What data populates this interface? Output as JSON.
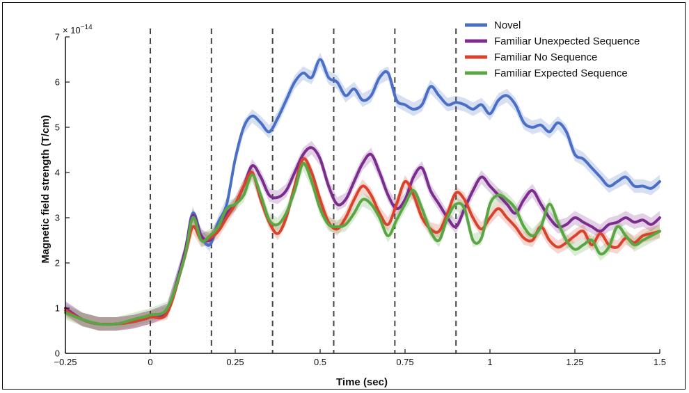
{
  "chart_data": {
    "type": "line",
    "xlabel": "Time (sec)",
    "ylabel": "Magnetic field strength (T/cm)",
    "y_multiplier_label": "× 10",
    "y_multiplier_exponent": "−14",
    "xlim": [
      -0.25,
      1.5
    ],
    "ylim": [
      0,
      7
    ],
    "x_ticks": [
      -0.25,
      0,
      0.25,
      0.5,
      0.75,
      1,
      1.25,
      1.5
    ],
    "x_tick_labels": [
      "−0.25",
      "0",
      "0.25",
      "0.5",
      "0.75",
      "1",
      "1.25",
      "1.5"
    ],
    "y_ticks": [
      0,
      1,
      2,
      3,
      4,
      5,
      6,
      7
    ],
    "y_tick_labels": [
      "0",
      "1",
      "2",
      "3",
      "4",
      "5",
      "6",
      "7"
    ],
    "vertical_markers": [
      0,
      0.18,
      0.36,
      0.54,
      0.72,
      0.9
    ],
    "grid": false,
    "legend_position": "top-right",
    "x": [
      -0.25,
      -0.2,
      -0.15,
      -0.1,
      -0.05,
      0,
      0.05,
      0.1,
      0.125,
      0.15,
      0.175,
      0.2,
      0.225,
      0.25,
      0.275,
      0.3,
      0.325,
      0.35,
      0.375,
      0.4,
      0.425,
      0.45,
      0.475,
      0.5,
      0.525,
      0.55,
      0.575,
      0.6,
      0.625,
      0.65,
      0.675,
      0.7,
      0.725,
      0.75,
      0.775,
      0.8,
      0.825,
      0.85,
      0.875,
      0.9,
      0.925,
      0.95,
      0.975,
      1,
      1.025,
      1.05,
      1.075,
      1.1,
      1.125,
      1.15,
      1.175,
      1.2,
      1.225,
      1.25,
      1.275,
      1.3,
      1.325,
      1.35,
      1.375,
      1.4,
      1.425,
      1.45,
      1.475,
      1.5
    ],
    "series": [
      {
        "name": "Novel",
        "color": "#4a6fc4",
        "values": [
          1.0,
          0.75,
          0.65,
          0.65,
          0.7,
          0.8,
          0.95,
          2.2,
          3.1,
          2.6,
          2.4,
          2.9,
          3.3,
          4.3,
          5.0,
          5.25,
          5.1,
          4.9,
          5.2,
          5.6,
          6.0,
          6.2,
          6.1,
          6.5,
          6.1,
          6.0,
          5.7,
          5.85,
          5.6,
          5.7,
          6.1,
          6.2,
          5.6,
          5.5,
          5.4,
          5.5,
          5.9,
          5.7,
          5.5,
          5.55,
          5.5,
          5.4,
          5.5,
          5.3,
          5.6,
          5.7,
          5.5,
          5.1,
          5.0,
          5.05,
          4.9,
          5.1,
          4.9,
          4.4,
          4.3,
          4.1,
          3.9,
          3.7,
          3.8,
          3.9,
          3.7,
          3.7,
          3.65,
          3.8
        ]
      },
      {
        "name": "Familiar Unexpected Sequence",
        "color": "#7b2d8e",
        "values": [
          1.0,
          0.75,
          0.65,
          0.65,
          0.7,
          0.8,
          0.95,
          2.2,
          3.05,
          2.6,
          2.5,
          2.8,
          3.1,
          3.3,
          3.7,
          4.15,
          3.9,
          3.5,
          3.45,
          3.6,
          4.0,
          4.4,
          4.55,
          4.3,
          3.7,
          3.3,
          3.4,
          3.8,
          4.2,
          4.4,
          4.0,
          3.5,
          3.2,
          3.4,
          3.9,
          4.1,
          3.6,
          3.3,
          3.0,
          2.8,
          3.2,
          3.6,
          3.9,
          3.7,
          3.5,
          3.3,
          3.1,
          3.4,
          3.6,
          3.3,
          3.0,
          2.8,
          2.85,
          3.0,
          2.9,
          2.8,
          2.7,
          2.85,
          2.9,
          3.0,
          2.9,
          2.95,
          2.85,
          3.0
        ]
      },
      {
        "name": "Familiar No Sequence",
        "color": "#d9432c",
        "values": [
          0.95,
          0.75,
          0.65,
          0.65,
          0.7,
          0.8,
          0.9,
          2.1,
          2.8,
          2.5,
          2.55,
          2.7,
          3.0,
          3.3,
          3.7,
          4.0,
          3.4,
          2.9,
          2.65,
          3.0,
          3.7,
          4.3,
          4.0,
          3.4,
          2.9,
          2.75,
          3.0,
          3.4,
          3.7,
          3.5,
          3.1,
          2.85,
          3.3,
          3.8,
          3.5,
          3.0,
          2.75,
          2.7,
          3.1,
          3.55,
          3.4,
          3.0,
          2.75,
          3.0,
          3.2,
          3.0,
          2.8,
          2.55,
          2.5,
          2.8,
          2.5,
          2.35,
          2.45,
          2.6,
          2.7,
          2.4,
          2.65,
          2.4,
          2.35,
          2.55,
          2.45,
          2.6,
          2.65,
          2.7
        ]
      },
      {
        "name": "Familiar Expected Sequence",
        "color": "#5aa642",
        "values": [
          0.9,
          0.75,
          0.65,
          0.65,
          0.75,
          0.85,
          1.0,
          2.1,
          3.0,
          2.5,
          2.6,
          2.8,
          3.2,
          3.3,
          3.5,
          3.95,
          3.5,
          2.95,
          2.85,
          3.1,
          3.6,
          4.2,
          3.8,
          3.2,
          2.85,
          2.8,
          2.85,
          3.1,
          3.4,
          3.3,
          3.0,
          2.6,
          2.95,
          3.3,
          3.6,
          3.2,
          2.7,
          2.5,
          3.0,
          3.3,
          3.2,
          2.5,
          2.55,
          3.3,
          3.5,
          3.4,
          3.2,
          2.8,
          2.6,
          2.8,
          3.3,
          2.9,
          2.5,
          2.3,
          2.4,
          2.5,
          2.2,
          2.35,
          2.8,
          2.6,
          2.4,
          2.5,
          2.6,
          2.7
        ]
      }
    ]
  }
}
